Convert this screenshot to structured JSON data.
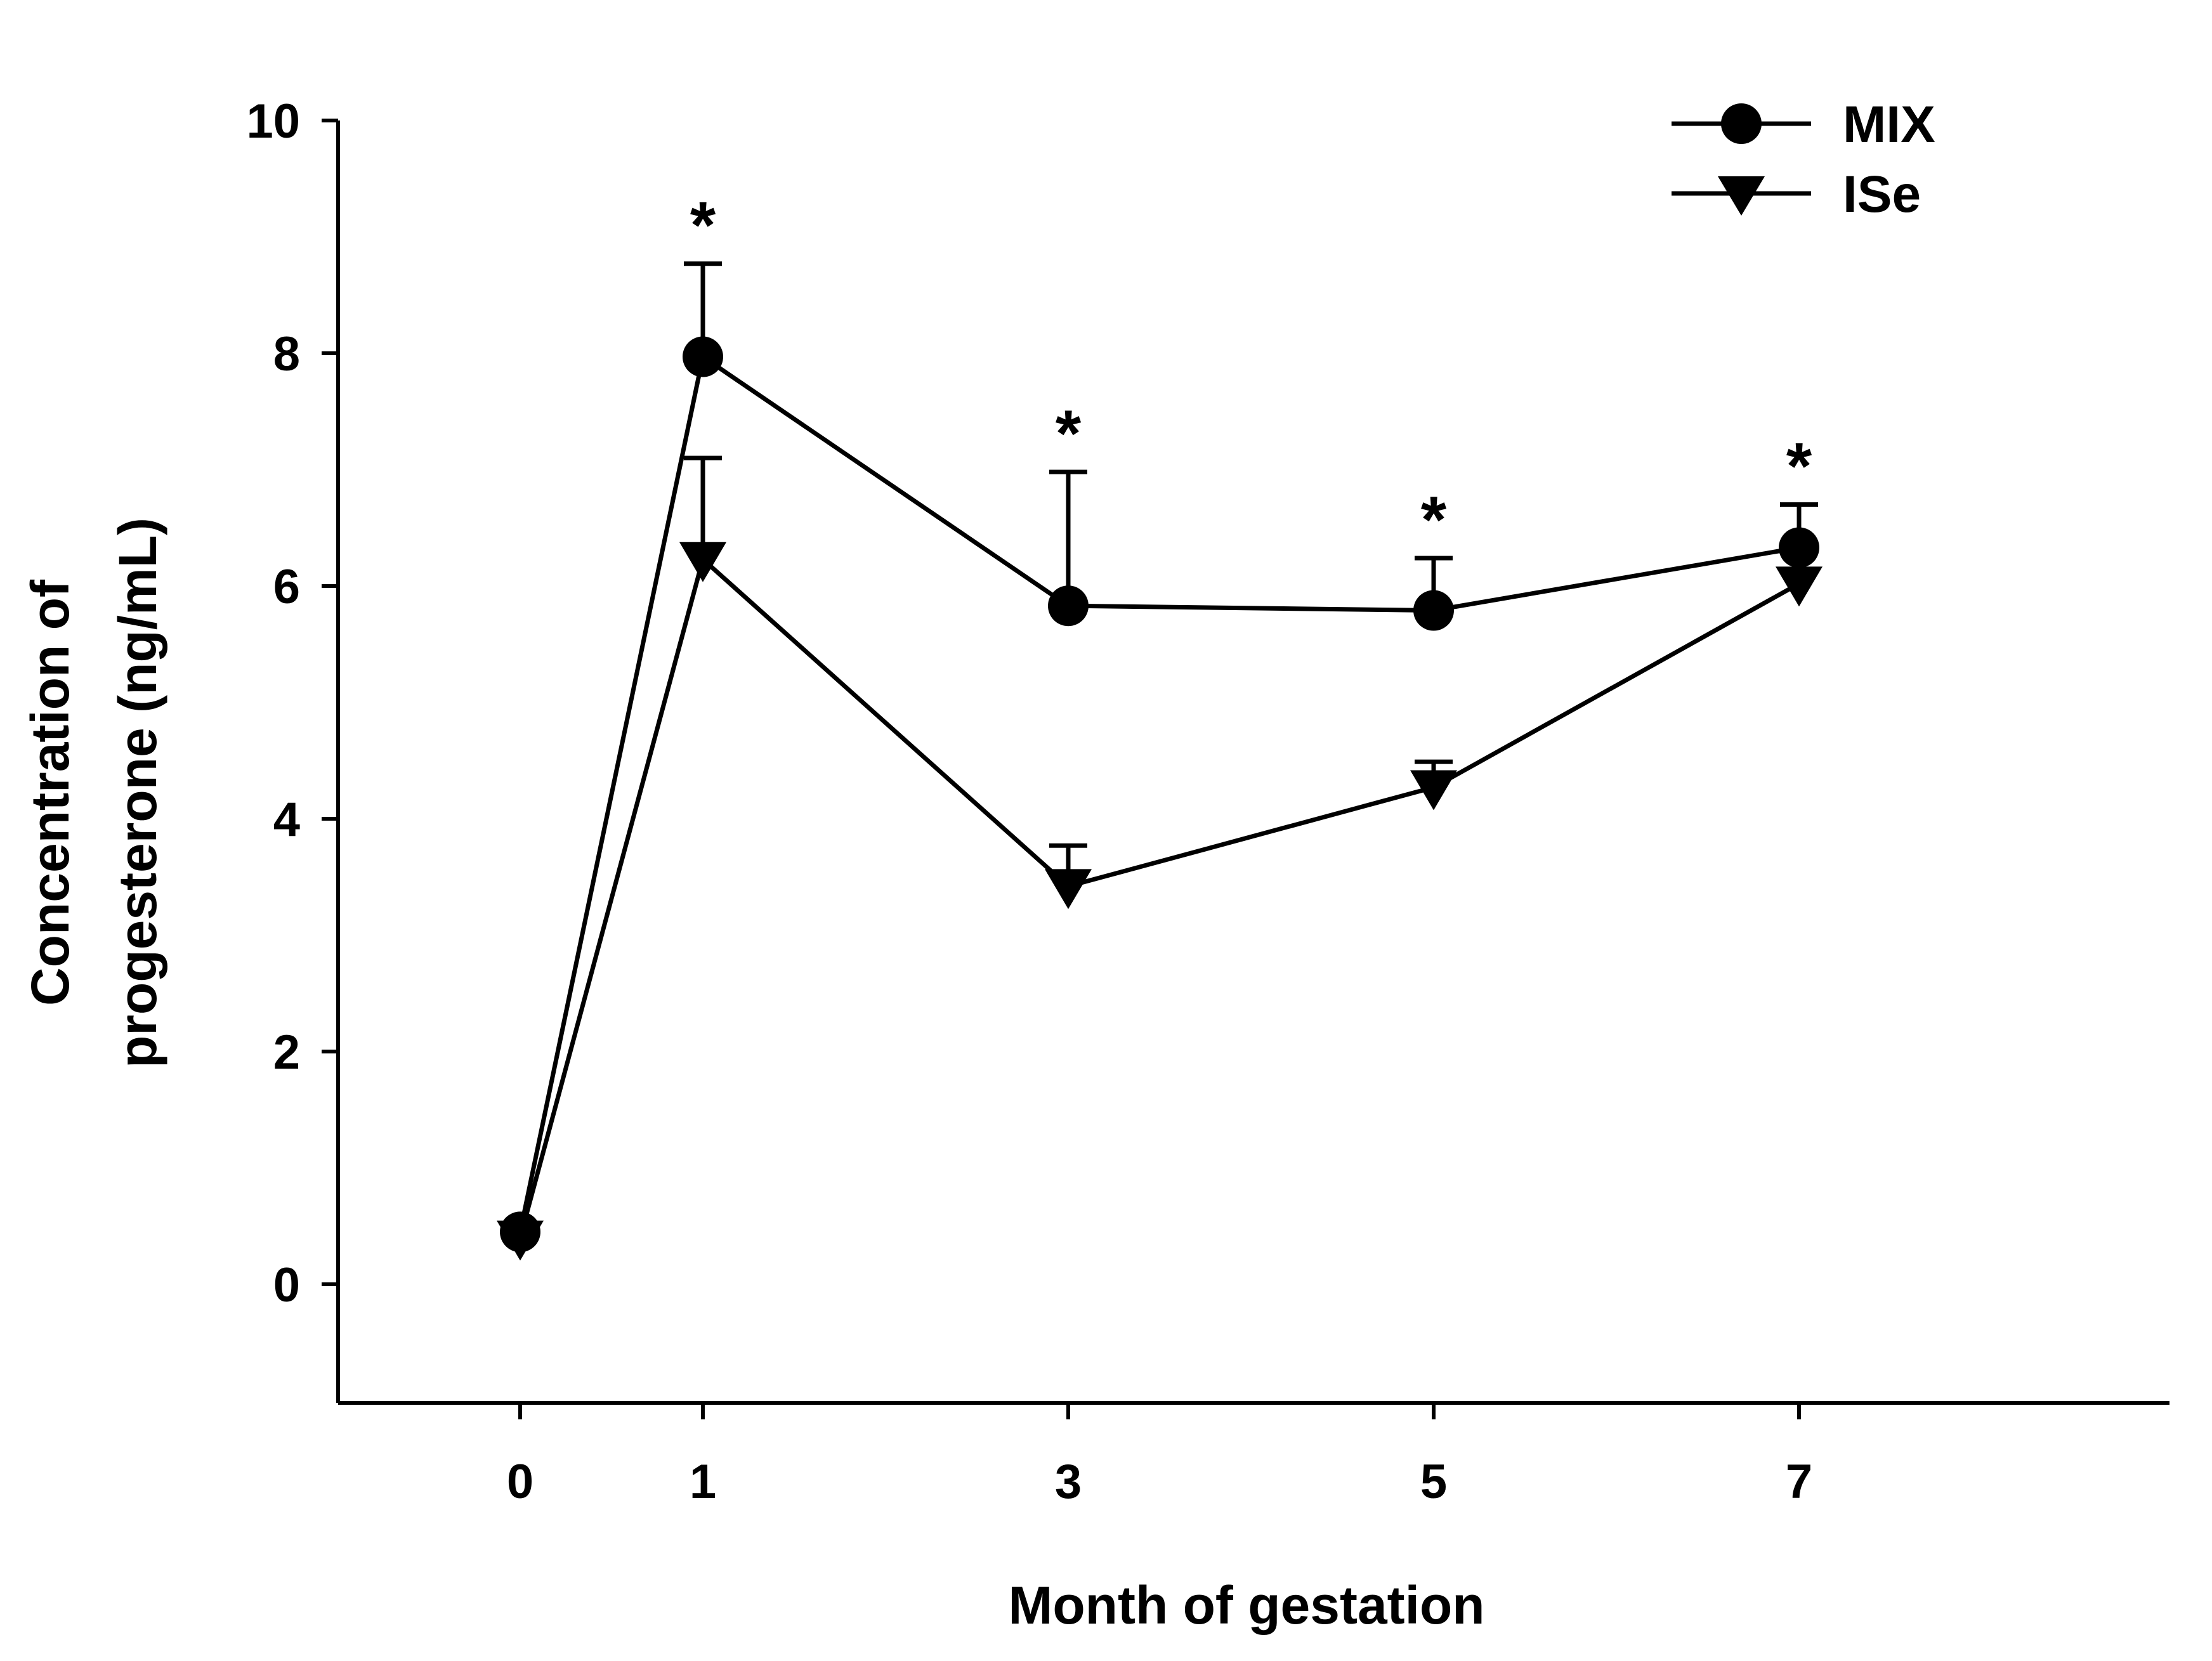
{
  "chart_data": {
    "type": "line",
    "title": "",
    "xlabel": "Month of gestation",
    "ylabel_lines": [
      "Concentration of",
      "progesterone (ng/mL)"
    ],
    "ylabel": "Concentration of progesterone (ng/mL)",
    "categories": [
      "0",
      "1",
      "3",
      "5",
      "7"
    ],
    "x": [
      0,
      1,
      3,
      5,
      7
    ],
    "ylim": [
      -1,
      10
    ],
    "yticks": [
      0,
      2,
      4,
      6,
      8,
      10
    ],
    "ytick_labels": [
      "0",
      "2",
      "4",
      "6",
      "8",
      "10"
    ],
    "legend_position": "top-right",
    "series": [
      {
        "name": "MIX",
        "marker": "circle",
        "values": [
          0.45,
          7.97,
          5.83,
          5.79,
          6.33
        ],
        "error_upper": [
          0.0,
          0.8,
          1.15,
          0.45,
          0.37
        ],
        "significance": [
          "",
          "*",
          "*",
          "*",
          "*"
        ]
      },
      {
        "name": "ISe",
        "marker": "triangle-down",
        "values": [
          0.4,
          6.23,
          3.42,
          4.27,
          6.02
        ],
        "error_upper": [
          0.0,
          0.87,
          0.35,
          0.22,
          0.0
        ],
        "significance": [
          "",
          "",
          "",
          "",
          ""
        ]
      }
    ],
    "grid": false
  }
}
